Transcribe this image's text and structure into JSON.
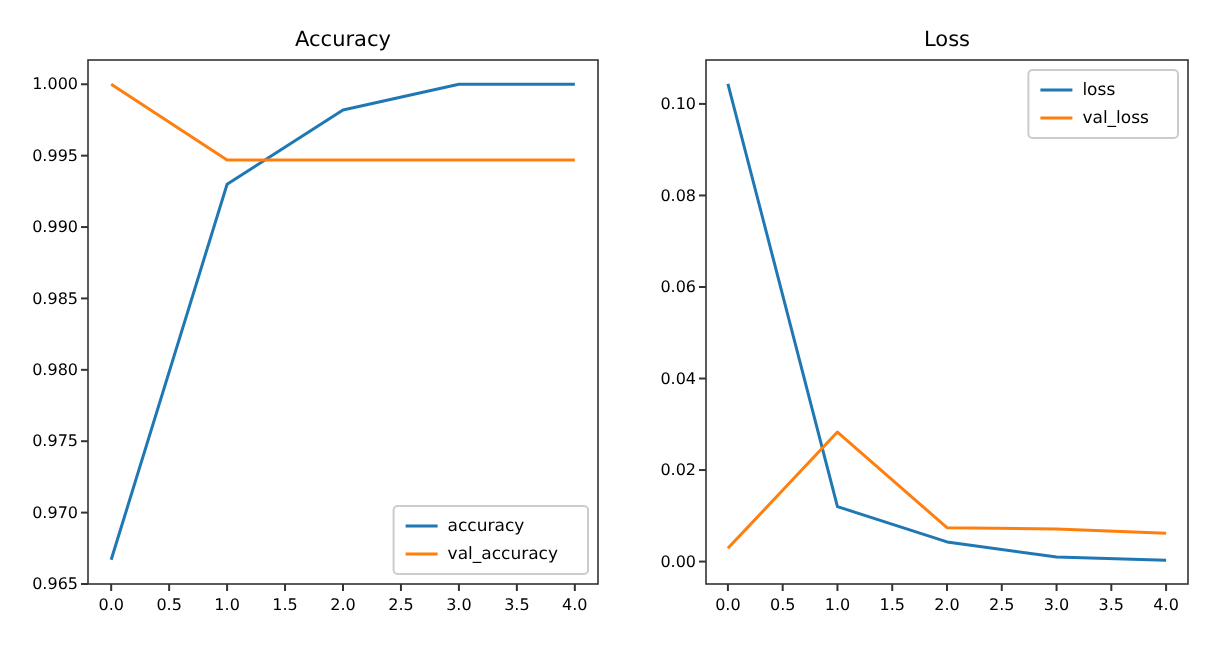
{
  "chart_data": [
    {
      "type": "line",
      "title": "Accuracy",
      "x": [
        0,
        1,
        2,
        3,
        4
      ],
      "series": [
        {
          "name": "accuracy",
          "color": "#1f77b4",
          "values": [
            0.9667,
            0.993,
            0.9982,
            1.0,
            1.0
          ]
        },
        {
          "name": "val_accuracy",
          "color": "#ff7f0e",
          "values": [
            1.0,
            0.9947,
            0.9947,
            0.9947,
            0.9947
          ]
        }
      ],
      "xlim": [
        -0.2,
        4.2
      ],
      "xticks": [
        {
          "value": 0,
          "label": "0.0"
        },
        {
          "value": 0.5,
          "label": "0.5"
        },
        {
          "value": 1,
          "label": "1.0"
        },
        {
          "value": 1.5,
          "label": "1.5"
        },
        {
          "value": 2,
          "label": "2.0"
        },
        {
          "value": 2.5,
          "label": "2.5"
        },
        {
          "value": 3,
          "label": "3.0"
        },
        {
          "value": 3.5,
          "label": "3.5"
        },
        {
          "value": 4,
          "label": "4.0"
        }
      ],
      "ylim": [
        0.965,
        1.0017
      ],
      "yticks": [
        {
          "value": 0.965,
          "label": "0.965"
        },
        {
          "value": 0.97,
          "label": "0.970"
        },
        {
          "value": 0.975,
          "label": "0.975"
        },
        {
          "value": 0.98,
          "label": "0.980"
        },
        {
          "value": 0.985,
          "label": "0.985"
        },
        {
          "value": 0.99,
          "label": "0.990"
        },
        {
          "value": 0.995,
          "label": "0.995"
        },
        {
          "value": 1.0,
          "label": "1.000"
        }
      ],
      "legend": "bottom right",
      "grid": false
    },
    {
      "type": "line",
      "title": "Loss",
      "x": [
        0,
        1,
        2,
        3,
        4
      ],
      "series": [
        {
          "name": "loss",
          "color": "#1f77b4",
          "values": [
            0.1044,
            0.012,
            0.0043,
            0.001,
            0.0003
          ]
        },
        {
          "name": "val_loss",
          "color": "#ff7f0e",
          "values": [
            0.0029,
            0.0283,
            0.0074,
            0.0071,
            0.0062
          ]
        }
      ],
      "xlim": [
        -0.2,
        4.2
      ],
      "xticks": [
        {
          "value": 0,
          "label": "0.0"
        },
        {
          "value": 0.5,
          "label": "0.5"
        },
        {
          "value": 1,
          "label": "1.0"
        },
        {
          "value": 1.5,
          "label": "1.5"
        },
        {
          "value": 2,
          "label": "2.0"
        },
        {
          "value": 2.5,
          "label": "2.5"
        },
        {
          "value": 3,
          "label": "3.0"
        },
        {
          "value": 3.5,
          "label": "3.5"
        },
        {
          "value": 4,
          "label": "4.0"
        }
      ],
      "ylim": [
        -0.0049,
        0.1096
      ],
      "yticks": [
        {
          "value": 0,
          "label": "0.00"
        },
        {
          "value": 0.02,
          "label": "0.02"
        },
        {
          "value": 0.04,
          "label": "0.04"
        },
        {
          "value": 0.06,
          "label": "0.06"
        },
        {
          "value": 0.08,
          "label": "0.08"
        },
        {
          "value": 0.1,
          "label": "0.10"
        }
      ],
      "legend": "top right",
      "grid": false
    }
  ]
}
